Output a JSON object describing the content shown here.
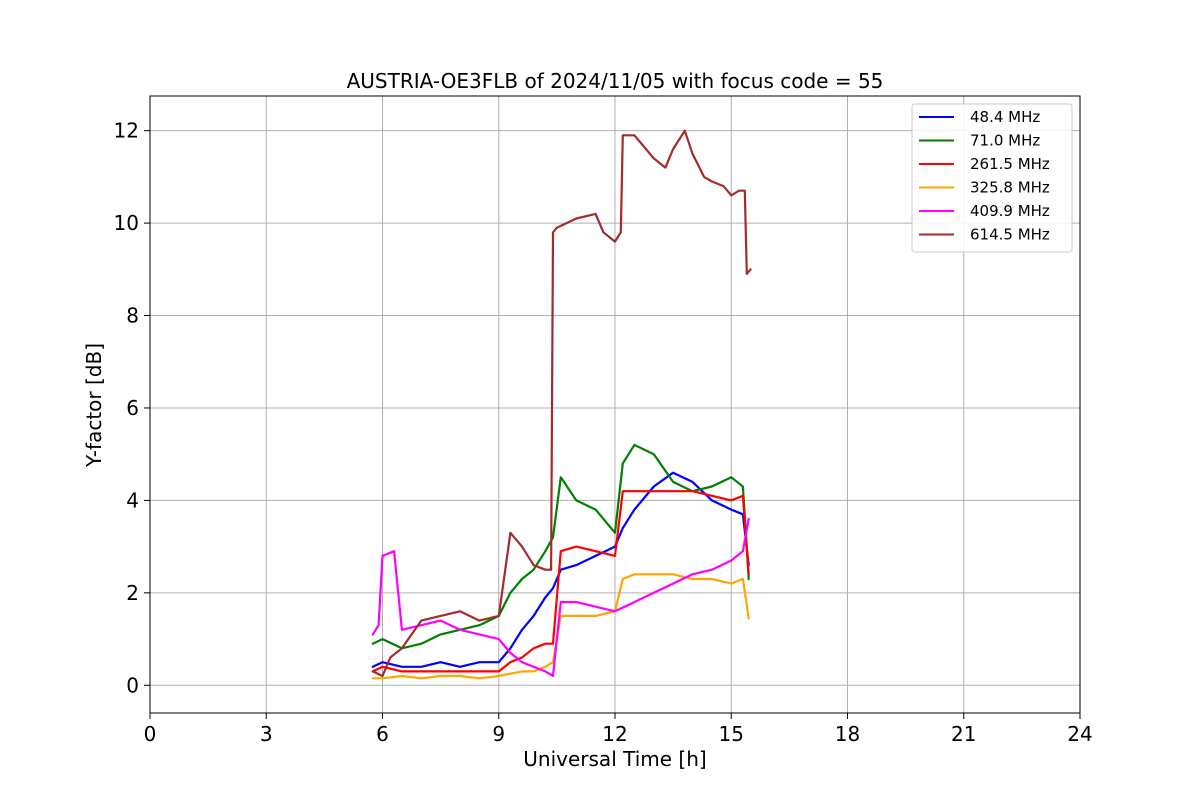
{
  "chart_data": {
    "type": "line",
    "title": "AUSTRIA-OE3FLB of 2024/11/05 with focus code = 55",
    "xlabel": "Universal Time [h]",
    "ylabel": "Y-factor [dB]",
    "xlim": [
      0,
      24
    ],
    "ylim": [
      -0.6,
      12.75
    ],
    "xticks": [
      0,
      3,
      6,
      9,
      12,
      15,
      18,
      21,
      24
    ],
    "yticks": [
      0,
      2,
      4,
      6,
      8,
      10,
      12
    ],
    "grid": true,
    "legend_position": "top-right",
    "series": [
      {
        "name": "48.4 MHz",
        "color": "#0000ff",
        "x": [
          5.75,
          6.0,
          6.5,
          7.0,
          7.5,
          8.0,
          8.5,
          9.0,
          9.3,
          9.6,
          9.9,
          10.2,
          10.4,
          10.6,
          11.0,
          11.5,
          12.0,
          12.2,
          12.5,
          13.0,
          13.5,
          14.0,
          14.5,
          15.0,
          15.3,
          15.45
        ],
        "y": [
          0.4,
          0.5,
          0.4,
          0.4,
          0.5,
          0.4,
          0.5,
          0.5,
          0.8,
          1.2,
          1.5,
          1.9,
          2.1,
          2.5,
          2.6,
          2.8,
          3.0,
          3.4,
          3.8,
          4.3,
          4.6,
          4.4,
          4.0,
          3.8,
          3.7,
          2.6
        ]
      },
      {
        "name": "71.0 MHz",
        "color": "#008000",
        "x": [
          5.75,
          6.0,
          6.5,
          7.0,
          7.5,
          8.0,
          8.5,
          9.0,
          9.3,
          9.6,
          9.9,
          10.2,
          10.4,
          10.6,
          11.0,
          11.5,
          12.0,
          12.2,
          12.5,
          13.0,
          13.5,
          14.0,
          14.5,
          15.0,
          15.3,
          15.45
        ],
        "y": [
          0.9,
          1.0,
          0.8,
          0.9,
          1.1,
          1.2,
          1.3,
          1.5,
          2.0,
          2.3,
          2.5,
          2.9,
          3.2,
          4.5,
          4.0,
          3.8,
          3.3,
          4.8,
          5.2,
          5.0,
          4.4,
          4.2,
          4.3,
          4.5,
          4.3,
          2.3
        ]
      },
      {
        "name": "261.5 MHz",
        "color": "#ff0000",
        "x": [
          5.75,
          6.0,
          6.5,
          7.0,
          7.5,
          8.0,
          8.5,
          9.0,
          9.3,
          9.6,
          9.9,
          10.2,
          10.4,
          10.6,
          11.0,
          11.5,
          12.0,
          12.2,
          12.5,
          13.0,
          13.5,
          14.0,
          14.5,
          15.0,
          15.3,
          15.45
        ],
        "y": [
          0.3,
          0.4,
          0.3,
          0.3,
          0.3,
          0.3,
          0.3,
          0.3,
          0.5,
          0.6,
          0.8,
          0.9,
          0.9,
          2.9,
          3.0,
          2.9,
          2.8,
          4.2,
          4.2,
          4.2,
          4.2,
          4.2,
          4.1,
          4.0,
          4.1,
          2.4
        ]
      },
      {
        "name": "325.8 MHz",
        "color": "#ffa500",
        "x": [
          5.75,
          6.0,
          6.5,
          7.0,
          7.5,
          8.0,
          8.5,
          9.0,
          9.3,
          9.6,
          9.9,
          10.2,
          10.4,
          10.6,
          11.0,
          11.5,
          12.0,
          12.2,
          12.5,
          13.0,
          13.5,
          14.0,
          14.5,
          15.0,
          15.3,
          15.45
        ],
        "y": [
          0.15,
          0.15,
          0.2,
          0.15,
          0.2,
          0.2,
          0.15,
          0.2,
          0.25,
          0.3,
          0.3,
          0.4,
          0.5,
          1.5,
          1.5,
          1.5,
          1.6,
          2.3,
          2.4,
          2.4,
          2.4,
          2.3,
          2.3,
          2.2,
          2.3,
          1.45
        ]
      },
      {
        "name": "409.9 MHz",
        "color": "#ff00ff",
        "x": [
          5.75,
          5.9,
          6.0,
          6.3,
          6.5,
          7.0,
          7.5,
          8.0,
          8.5,
          9.0,
          9.3,
          9.6,
          9.9,
          10.2,
          10.4,
          10.6,
          11.0,
          11.5,
          12.0,
          12.5,
          13.0,
          13.5,
          14.0,
          14.5,
          15.0,
          15.3,
          15.45
        ],
        "y": [
          1.1,
          1.3,
          2.8,
          2.9,
          1.2,
          1.3,
          1.4,
          1.2,
          1.1,
          1.0,
          0.7,
          0.5,
          0.4,
          0.3,
          0.2,
          1.8,
          1.8,
          1.7,
          1.6,
          1.8,
          2.0,
          2.2,
          2.4,
          2.5,
          2.7,
          2.9,
          3.6
        ]
      },
      {
        "name": "614.5 MHz",
        "color": "#a52a2a",
        "x": [
          5.75,
          6.0,
          6.2,
          6.5,
          7.0,
          7.5,
          8.0,
          8.5,
          9.0,
          9.3,
          9.6,
          9.9,
          10.2,
          10.35,
          10.4,
          10.5,
          11.0,
          11.5,
          11.7,
          12.0,
          12.15,
          12.2,
          12.5,
          12.8,
          13.0,
          13.3,
          13.5,
          13.8,
          14.0,
          14.3,
          14.5,
          14.8,
          15.0,
          15.2,
          15.35,
          15.4,
          15.5
        ],
        "y": [
          0.3,
          0.2,
          0.6,
          0.8,
          1.4,
          1.5,
          1.6,
          1.4,
          1.5,
          3.3,
          3.0,
          2.6,
          2.5,
          2.5,
          9.8,
          9.9,
          10.1,
          10.2,
          9.8,
          9.6,
          9.8,
          11.9,
          11.9,
          11.6,
          11.4,
          11.2,
          11.6,
          12.0,
          11.5,
          11.0,
          10.9,
          10.8,
          10.6,
          10.7,
          10.7,
          8.9,
          9.0
        ]
      }
    ]
  }
}
